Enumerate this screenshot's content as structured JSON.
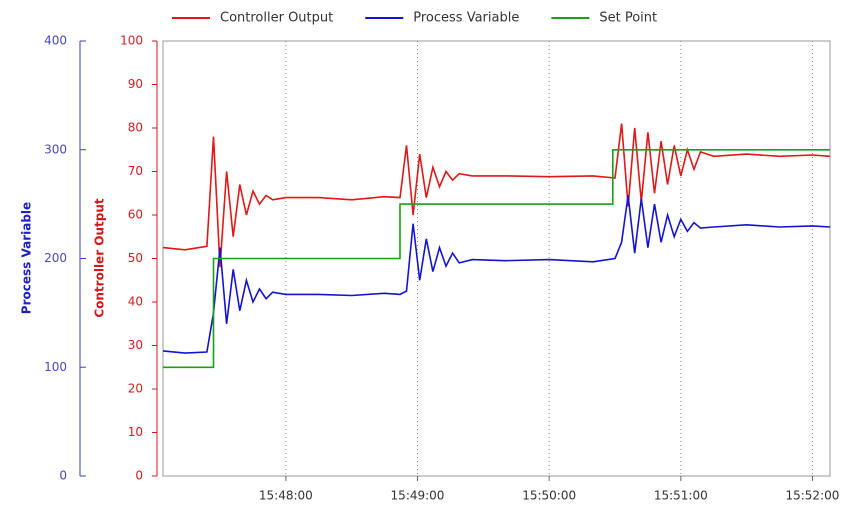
{
  "chart_data": {
    "type": "line",
    "y_label": "Controller Output",
    "y2_label": "Process Variable",
    "ylim": [
      0,
      100
    ],
    "yticks": [
      0,
      10,
      20,
      30,
      40,
      50,
      60,
      70,
      80,
      90,
      100
    ],
    "y2lim": [
      0,
      400
    ],
    "y2ticks": [
      0,
      100,
      200,
      300,
      400
    ],
    "xlim": [
      "15:47:04",
      "15:52:08"
    ],
    "xticks": [
      "15:48:00",
      "15:49:00",
      "15:50:00",
      "15:51:00",
      "15:52:00"
    ],
    "grid": "x",
    "legend": "top",
    "series": [
      {
        "name": "Controller Output",
        "color": "#e01818",
        "x": [
          "15:47:04",
          "15:47:14",
          "15:47:24",
          "15:47:27",
          "15:47:30",
          "15:47:33",
          "15:47:36",
          "15:47:39",
          "15:47:42",
          "15:47:45",
          "15:47:48",
          "15:47:51",
          "15:47:54",
          "15:48:00",
          "15:48:15",
          "15:48:30",
          "15:48:45",
          "15:48:52",
          "15:48:55",
          "15:48:58",
          "15:49:01",
          "15:49:04",
          "15:49:07",
          "15:49:10",
          "15:49:13",
          "15:49:16",
          "15:49:19",
          "15:49:25",
          "15:49:40",
          "15:50:00",
          "15:50:20",
          "15:50:30",
          "15:50:33",
          "15:50:36",
          "15:50:39",
          "15:50:42",
          "15:50:45",
          "15:50:48",
          "15:50:51",
          "15:50:54",
          "15:50:57",
          "15:51:00",
          "15:51:03",
          "15:51:06",
          "15:51:09",
          "15:51:15",
          "15:51:30",
          "15:51:45",
          "15:52:00",
          "15:52:08"
        ],
        "values": [
          52.5,
          52,
          52.8,
          78,
          48,
          70,
          55,
          67,
          60,
          65.5,
          62.5,
          64.5,
          63.5,
          64,
          64,
          63.5,
          64.2,
          64,
          76,
          60,
          74,
          64,
          71,
          66.5,
          70,
          68,
          69.5,
          69,
          69,
          68.8,
          69,
          68.5,
          81,
          62,
          80,
          63,
          79,
          65,
          77,
          67,
          76,
          69,
          75,
          70.5,
          74.5,
          73.5,
          74,
          73.5,
          73.8,
          73.5
        ]
      },
      {
        "name": "Process Variable",
        "color": "#1414d0",
        "axis": "y2",
        "x": [
          "15:47:04",
          "15:47:14",
          "15:47:24",
          "15:47:27",
          "15:47:30",
          "15:47:33",
          "15:47:36",
          "15:47:39",
          "15:47:42",
          "15:47:45",
          "15:47:48",
          "15:47:51",
          "15:47:54",
          "15:48:00",
          "15:48:15",
          "15:48:30",
          "15:48:45",
          "15:48:52",
          "15:48:55",
          "15:48:58",
          "15:49:01",
          "15:49:04",
          "15:49:07",
          "15:49:10",
          "15:49:13",
          "15:49:16",
          "15:49:19",
          "15:49:25",
          "15:49:40",
          "15:50:00",
          "15:50:20",
          "15:50:30",
          "15:50:33",
          "15:50:36",
          "15:50:39",
          "15:50:42",
          "15:50:45",
          "15:50:48",
          "15:50:51",
          "15:50:54",
          "15:50:57",
          "15:51:00",
          "15:51:03",
          "15:51:06",
          "15:51:09",
          "15:51:15",
          "15:51:30",
          "15:51:45",
          "15:52:00",
          "15:52:08"
        ],
        "values": [
          115,
          113,
          114,
          150,
          210,
          140,
          190,
          152,
          180,
          160,
          172,
          163,
          169,
          167,
          167,
          166,
          168,
          167,
          170,
          232,
          180,
          218,
          188,
          210,
          193,
          205,
          196,
          199,
          198,
          199,
          197,
          200,
          215,
          258,
          205,
          255,
          210,
          250,
          215,
          240,
          220,
          236,
          225,
          233,
          228,
          229,
          231,
          229,
          230,
          229
        ]
      },
      {
        "name": "Set Point",
        "color": "#18a018",
        "axis": "y2",
        "x": [
          "15:47:04",
          "15:47:27",
          "15:47:27",
          "15:48:52",
          "15:48:52",
          "15:50:29",
          "15:50:29",
          "15:52:08"
        ],
        "values": [
          100,
          100,
          200,
          200,
          250,
          250,
          300,
          300
        ]
      }
    ]
  }
}
